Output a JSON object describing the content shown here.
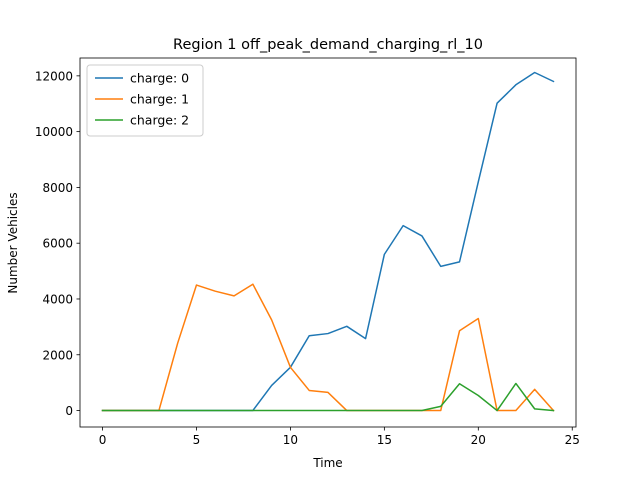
{
  "chart_data": {
    "type": "line",
    "title": "Region 1 off_peak_demand_charging_rl_10",
    "xlabel": "Time",
    "ylabel": "Number Vehicles",
    "xlim": [
      -1.2,
      25.2
    ],
    "ylim": [
      -590,
      12640
    ],
    "xticks": [
      0,
      5,
      10,
      15,
      20,
      25
    ],
    "yticks": [
      0,
      2000,
      4000,
      6000,
      8000,
      10000,
      12000
    ],
    "grid": false,
    "legend_position": "top-left",
    "x": [
      0,
      1,
      2,
      3,
      4,
      5,
      6,
      7,
      8,
      9,
      10,
      11,
      12,
      13,
      14,
      15,
      16,
      17,
      18,
      19,
      20,
      21,
      22,
      23,
      24
    ],
    "series": [
      {
        "name": "charge: 0",
        "color": "#1f77b4",
        "values": [
          0,
          0,
          0,
          0,
          0,
          0,
          0,
          0,
          0,
          900,
          1550,
          2680,
          2760,
          3020,
          2580,
          5600,
          6630,
          6260,
          5170,
          5330,
          8200,
          11020,
          11680,
          12120,
          11800
        ]
      },
      {
        "name": "charge: 1",
        "color": "#ff7f0e",
        "values": [
          0,
          0,
          0,
          0,
          2420,
          4500,
          4280,
          4110,
          4530,
          3250,
          1550,
          720,
          650,
          0,
          0,
          0,
          0,
          0,
          0,
          2860,
          3300,
          0,
          0,
          760,
          0
        ]
      },
      {
        "name": "charge: 2",
        "color": "#2ca02c",
        "values": [
          0,
          0,
          0,
          0,
          0,
          0,
          0,
          0,
          0,
          0,
          0,
          0,
          0,
          0,
          0,
          0,
          0,
          0,
          150,
          960,
          540,
          0,
          970,
          60,
          0
        ]
      }
    ]
  }
}
